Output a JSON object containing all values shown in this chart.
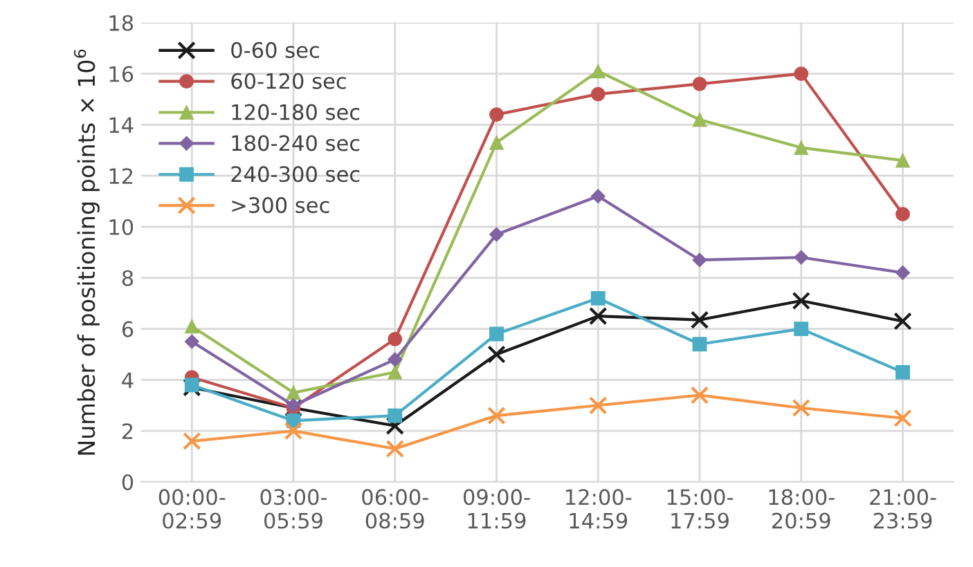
{
  "chart_data": {
    "type": "line",
    "ylabel": "Number of positioning points × 10$^{6}$",
    "categories": [
      "00:00-\n02:59",
      "03:00-\n05:59",
      "06:00-\n08:59",
      "09:00-\n11:59",
      "12:00-\n14:59",
      "15:00-\n17:59",
      "18:00-\n20:59",
      "21:00-\n23:59"
    ],
    "series": [
      {
        "name": "0-60 sec",
        "color": "#1a1a1a",
        "marker": "cross",
        "values": [
          3.7,
          2.9,
          2.2,
          5.0,
          6.5,
          6.35,
          7.1,
          6.3
        ]
      },
      {
        "name": "60-120 sec",
        "color": "#c0504d",
        "marker": "circle",
        "values": [
          4.1,
          2.9,
          5.6,
          14.4,
          15.2,
          15.6,
          16.0,
          10.5
        ]
      },
      {
        "name": "120-180 sec",
        "color": "#9bbb59",
        "marker": "triangle",
        "values": [
          6.1,
          3.5,
          4.3,
          13.3,
          16.1,
          14.2,
          13.1,
          12.6
        ]
      },
      {
        "name": "180-240 sec",
        "color": "#8064a2",
        "marker": "diamond",
        "values": [
          5.5,
          3.0,
          4.8,
          9.7,
          11.2,
          8.7,
          8.8,
          8.2
        ]
      },
      {
        "name": "240-300 sec",
        "color": "#4bacc6",
        "marker": "square",
        "values": [
          3.8,
          2.4,
          2.6,
          5.8,
          7.2,
          5.4,
          6.0,
          4.3
        ]
      },
      {
        "name": ">300 sec",
        "color": "#f79646",
        "marker": "cross",
        "values": [
          1.6,
          2.0,
          1.3,
          2.6,
          3.0,
          3.4,
          2.9,
          2.5
        ]
      }
    ],
    "ylim": [
      0,
      18
    ],
    "yticks": [
      0,
      2,
      4,
      6,
      8,
      10,
      12,
      14,
      16,
      18
    ],
    "grid": true,
    "legend": "top left",
    "line_style": "solid"
  }
}
